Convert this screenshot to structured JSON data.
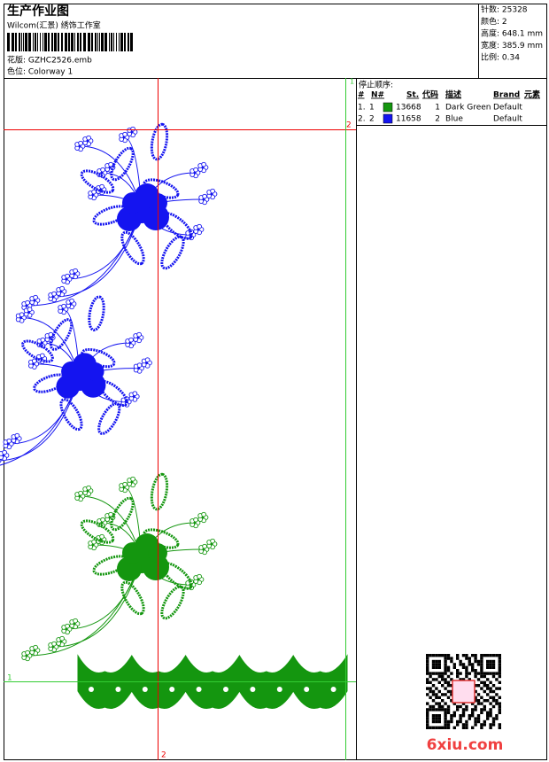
{
  "header": {
    "title": "生产作业图",
    "company": "Wilcom(汇景) 绣饰工作室",
    "design": "花版: GZHC2526.emb",
    "colorway": "色位: Colorway 1"
  },
  "stats": [
    "针数: 25328",
    "颜色: 2",
    "高度: 648.1 mm",
    "宽度: 385.9 mm",
    "比例: 0.34"
  ],
  "stop_sequence": {
    "title": "停止顺序:",
    "columns": [
      "#",
      "N#",
      "St.",
      "代码",
      "描述",
      "Brand",
      "元素"
    ],
    "rows": [
      {
        "index": "1.",
        "n": "1",
        "color": "#14960f",
        "stitches": "13668",
        "code": "1",
        "description": "Dark Green",
        "brand": "Default"
      },
      {
        "index": "2.",
        "n": "2",
        "color": "#1414f0",
        "stitches": "11658",
        "code": "2",
        "description": "Blue",
        "brand": "Default"
      }
    ]
  },
  "guides": {
    "top_green": "1",
    "top_red": "2",
    "left_green": "1",
    "bottom_red": "2"
  },
  "watermark": "6xiu.com"
}
